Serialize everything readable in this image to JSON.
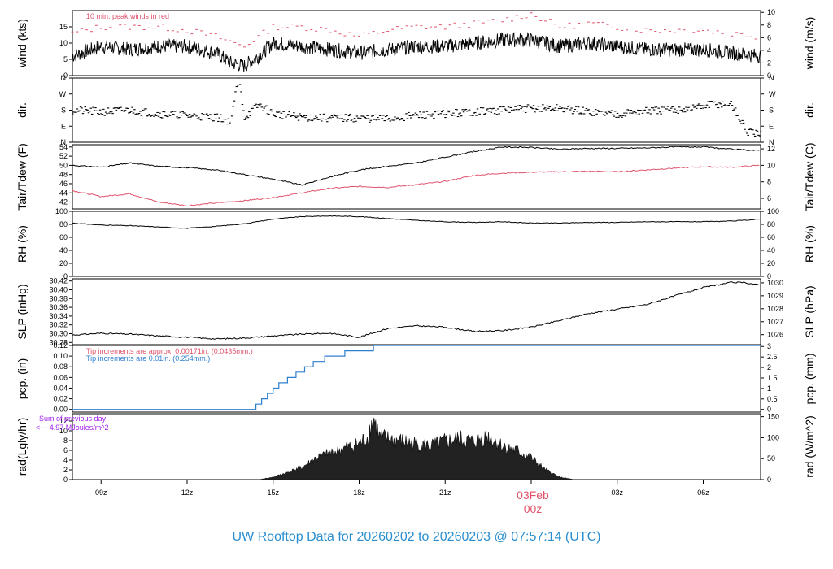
{
  "title": "UW Rooftop Data for 20260202  to  20260203 @ 07:57:14  (UTC)",
  "colors": {
    "title": "#2b8fcf",
    "red": "#df536b",
    "blue": "#2f7fcf",
    "purple": "#a020f0",
    "black": "#000000"
  },
  "x_axis": {
    "ticks": [
      {
        "h": 9,
        "label": "09z"
      },
      {
        "h": 12,
        "label": "12z"
      },
      {
        "h": 15,
        "label": "15z"
      },
      {
        "h": 18,
        "label": "18z"
      },
      {
        "h": 21,
        "label": "21z"
      },
      {
        "h": 24,
        "label": "00z"
      },
      {
        "h": 27,
        "label": "03z"
      },
      {
        "h": 30,
        "label": "06z"
      }
    ],
    "day_label": "03Feb",
    "day_hour_label": "00z",
    "range_hours": [
      8.0,
      32.0
    ]
  },
  "chart_data": [
    {
      "id": "wind",
      "type": "line",
      "ylabel_left": "wind (kts)",
      "ylabel_right": "wind (m/s)",
      "ylim": [
        0,
        20
      ],
      "left_ticks": [
        0,
        5,
        10,
        15
      ],
      "right_ticks": [
        0,
        2,
        4,
        6,
        8,
        10
      ],
      "annotation": "10 min. peak winds in red",
      "series": [
        {
          "name": "wind speed",
          "x_hours": [
            8,
            9,
            10,
            11,
            12,
            13,
            13.5,
            14,
            14.5,
            15,
            16,
            17,
            18,
            19,
            20,
            21,
            22,
            23,
            24,
            25,
            26,
            27,
            28,
            29,
            30,
            31,
            32
          ],
          "values": [
            6,
            9,
            8,
            9,
            9,
            7,
            4,
            3,
            6,
            10,
            9,
            8,
            7,
            8,
            9,
            9,
            10,
            11,
            11,
            9,
            10,
            9,
            8,
            8,
            8,
            7,
            6
          ]
        },
        {
          "name": "peak",
          "x_hours": [
            8,
            9,
            10,
            11,
            12,
            13,
            14,
            15,
            16,
            17,
            18,
            19,
            20,
            21,
            22,
            23,
            24,
            25,
            26,
            27,
            28,
            29,
            30,
            31,
            32
          ],
          "values": [
            13,
            15,
            15,
            15,
            14,
            12,
            9,
            15,
            15,
            14,
            12,
            14,
            15,
            15,
            16,
            17,
            19,
            15,
            16,
            15,
            14,
            14,
            14,
            13,
            12
          ]
        }
      ]
    },
    {
      "id": "dir",
      "type": "scatter",
      "ylabel_left": "dir.",
      "ylabel_right": "dir.",
      "ylim": [
        0,
        360
      ],
      "tick_labels": [
        "N",
        "E",
        "S",
        "W",
        "N"
      ],
      "series": [
        {
          "name": "direction",
          "x_hours": [
            8,
            9,
            10,
            11,
            12,
            13,
            13.5,
            13.8,
            14,
            14.5,
            15,
            16,
            17,
            18,
            19,
            20,
            21,
            22,
            23,
            24,
            25,
            26,
            27,
            28,
            29,
            30,
            30.3,
            31,
            31.5,
            32
          ],
          "values": [
            180,
            170,
            180,
            160,
            150,
            140,
            120,
            360,
            140,
            210,
            160,
            140,
            135,
            135,
            130,
            150,
            160,
            170,
            180,
            190,
            190,
            170,
            160,
            175,
            180,
            200,
            215,
            210,
            60,
            40
          ]
        }
      ]
    },
    {
      "id": "temp",
      "type": "line",
      "ylabel_left": "Tair/Tdew (F)",
      "ylabel_right": "Tair/Tdew (C)",
      "ylim": [
        40.5,
        54.5
      ],
      "left_ticks": [
        42,
        44,
        46,
        48,
        50,
        52,
        54
      ],
      "right_ticks": [
        6,
        8,
        10,
        12
      ],
      "series": [
        {
          "name": "Tair",
          "x_hours": [
            8,
            9,
            10,
            11,
            12,
            13,
            14,
            15,
            16,
            17,
            18,
            19,
            20,
            21,
            22,
            23,
            24,
            25,
            26,
            27,
            28,
            29,
            30,
            31,
            32
          ],
          "values": [
            50,
            49.6,
            50.5,
            49.8,
            49.5,
            49,
            48,
            47,
            45.7,
            47.5,
            49,
            49.8,
            50.5,
            51.8,
            53,
            54,
            53.9,
            53.5,
            53.7,
            53.7,
            53.8,
            54,
            54,
            53.5,
            53.2
          ]
        },
        {
          "name": "Tdew",
          "x_hours": [
            8,
            9,
            10,
            11,
            12,
            13,
            14,
            15,
            16,
            17,
            18,
            19,
            20,
            21,
            22,
            23,
            24,
            25,
            26,
            27,
            28,
            29,
            30,
            31,
            32
          ],
          "values": [
            44.5,
            43.2,
            43.8,
            42,
            41.2,
            41.8,
            42.3,
            43,
            44,
            45,
            45.4,
            45.2,
            45.8,
            46.5,
            47.8,
            48.3,
            48.5,
            48.6,
            48.7,
            48.6,
            49,
            49.4,
            49.7,
            49.6,
            50
          ]
        }
      ]
    },
    {
      "id": "rh",
      "type": "line",
      "ylabel_left": "RH (%)",
      "ylabel_right": "RH (%)",
      "ylim": [
        0,
        100
      ],
      "left_ticks": [
        0,
        20,
        40,
        60,
        80,
        100
      ],
      "right_ticks": [
        0,
        20,
        40,
        60,
        80,
        100
      ],
      "series": [
        {
          "name": "RH",
          "x_hours": [
            8,
            9,
            10,
            11,
            12,
            13,
            14,
            15,
            16,
            17,
            18,
            19,
            20,
            21,
            22,
            23,
            24,
            25,
            26,
            27,
            28,
            29,
            30,
            31,
            32
          ],
          "values": [
            82,
            79,
            78,
            76,
            74,
            77,
            81,
            88,
            92,
            93,
            92,
            89,
            86,
            84,
            83,
            84,
            82,
            82,
            83,
            83,
            84,
            84,
            84,
            85,
            88
          ]
        }
      ]
    },
    {
      "id": "slp",
      "type": "line",
      "ylabel_left": "SLP (inHg)",
      "ylabel_right": "SLP (hPa)",
      "ylim": [
        30.275,
        30.425
      ],
      "left_ticks": [
        30.28,
        30.3,
        30.32,
        30.34,
        30.36,
        30.38,
        30.4,
        30.42
      ],
      "right_ticks": [
        1026,
        1027,
        1028,
        1029,
        1030
      ],
      "series": [
        {
          "name": "SLP",
          "x_hours": [
            8,
            9,
            10,
            11,
            12,
            13,
            14,
            15,
            16,
            17,
            18,
            19,
            20,
            21,
            22,
            23,
            24,
            25,
            26,
            27,
            28,
            29,
            30,
            31,
            31.5,
            32
          ],
          "values": [
            30.297,
            30.301,
            30.299,
            30.295,
            30.292,
            30.288,
            30.29,
            30.295,
            30.299,
            30.301,
            30.292,
            30.312,
            30.318,
            30.315,
            30.305,
            30.307,
            30.315,
            30.33,
            30.346,
            30.356,
            30.366,
            30.386,
            30.405,
            30.417,
            30.416,
            30.41
          ]
        }
      ]
    },
    {
      "id": "pcp",
      "type": "line",
      "ylabel_left": "pcp. (in)",
      "ylabel_right": "pcp. (mm)",
      "ylim": [
        -0.005,
        0.12
      ],
      "left_ticks": [
        0.0,
        0.02,
        0.04,
        0.06,
        0.08,
        0.1,
        0.12
      ],
      "right_ticks": [
        0,
        0.5,
        1,
        1.5,
        2,
        2.5,
        3
      ],
      "annotation_1": "Tip increments are approx. 0.00171in. (0.0435mm.)",
      "annotation_2": "Tip increments are 0.01in. (0.254mm.)",
      "series": [
        {
          "name": "pcp",
          "x_hours": [
            8,
            14.4,
            14.4,
            14.6,
            14.6,
            14.8,
            14.8,
            15.0,
            15.0,
            15.2,
            15.2,
            15.5,
            15.5,
            15.8,
            15.8,
            16.1,
            16.1,
            16.4,
            16.4,
            16.8,
            16.8,
            17.5,
            17.5,
            18.5,
            18.5,
            32
          ],
          "values": [
            0,
            0,
            0.01,
            0.01,
            0.02,
            0.02,
            0.03,
            0.03,
            0.04,
            0.04,
            0.05,
            0.05,
            0.06,
            0.06,
            0.07,
            0.07,
            0.08,
            0.08,
            0.09,
            0.09,
            0.1,
            0.1,
            0.11,
            0.11,
            0.12,
            0.12
          ]
        }
      ]
    },
    {
      "id": "rad",
      "type": "area",
      "ylabel_left": "rad(Lgly/hr)",
      "ylabel_right": "rad (W/m^2)",
      "ylim": [
        0,
        13.5
      ],
      "left_ticks": [
        0,
        2,
        4,
        6,
        8,
        10,
        12
      ],
      "right_ticks": [
        0,
        50,
        100,
        150
      ],
      "annotation_1": "Sum of previous day",
      "annotation_2": "<--- 4.97 MJoules/m^2",
      "series": [
        {
          "name": "radiation",
          "x_hours": [
            14.5,
            15,
            15.5,
            16,
            16.5,
            17,
            17.5,
            18,
            18.3,
            18.5,
            18.7,
            19,
            19.5,
            20,
            20.5,
            21,
            21.5,
            22,
            22.5,
            23,
            23.5,
            24,
            24.5,
            25,
            25.5
          ],
          "values": [
            0,
            0.5,
            1.5,
            2.5,
            4.5,
            5.5,
            6.5,
            7.5,
            9,
            13,
            9,
            8.5,
            8,
            7.5,
            7,
            8,
            8.5,
            8,
            9,
            7,
            6,
            4.5,
            2,
            0.5,
            0
          ]
        }
      ]
    }
  ]
}
